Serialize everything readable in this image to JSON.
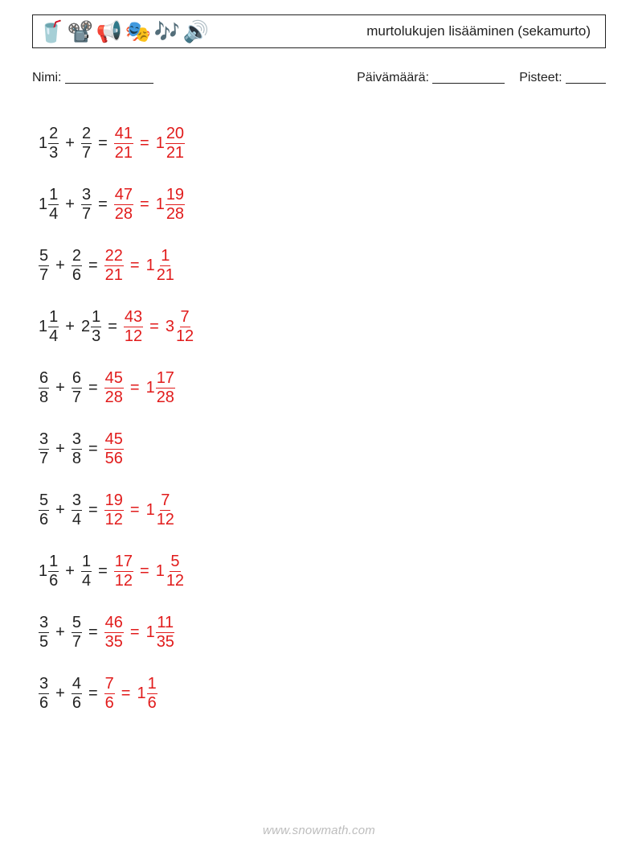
{
  "header": {
    "title": "murtolukujen lisääminen (sekamurto)",
    "icons": [
      "🥤",
      "📽️",
      "📢",
      "🎭",
      "🎶",
      "🔊"
    ]
  },
  "info": {
    "name_label": "Nimi:",
    "date_label": "Päivämäärä:",
    "score_label": "Pisteet:",
    "blank_name_w": 110,
    "blank_date_w": 90,
    "blank_score_w": 50
  },
  "colors": {
    "text": "#222222",
    "answer": "#e11b1b",
    "footer": "#bdbdbd",
    "background": "#ffffff"
  },
  "footer": "www.snowmath.com",
  "problems": [
    {
      "a": {
        "whole": "1",
        "num": "2",
        "den": "3"
      },
      "b": {
        "num": "2",
        "den": "7"
      },
      "im": {
        "num": "41",
        "den": "21"
      },
      "ans": {
        "whole": "1",
        "num": "20",
        "den": "21"
      }
    },
    {
      "a": {
        "whole": "1",
        "num": "1",
        "den": "4"
      },
      "b": {
        "num": "3",
        "den": "7"
      },
      "im": {
        "num": "47",
        "den": "28"
      },
      "ans": {
        "whole": "1",
        "num": "19",
        "den": "28"
      }
    },
    {
      "a": {
        "num": "5",
        "den": "7"
      },
      "b": {
        "num": "2",
        "den": "6"
      },
      "im": {
        "num": "22",
        "den": "21"
      },
      "ans": {
        "whole": "1",
        "num": "1",
        "den": "21"
      }
    },
    {
      "a": {
        "whole": "1",
        "num": "1",
        "den": "4"
      },
      "b": {
        "whole": "2",
        "num": "1",
        "den": "3"
      },
      "im": {
        "num": "43",
        "den": "12"
      },
      "ans": {
        "whole": "3",
        "num": "7",
        "den": "12"
      }
    },
    {
      "a": {
        "num": "6",
        "den": "8"
      },
      "b": {
        "num": "6",
        "den": "7"
      },
      "im": {
        "num": "45",
        "den": "28"
      },
      "ans": {
        "whole": "1",
        "num": "17",
        "den": "28"
      }
    },
    {
      "a": {
        "num": "3",
        "den": "7"
      },
      "b": {
        "num": "3",
        "den": "8"
      },
      "im": {
        "num": "45",
        "den": "56"
      }
    },
    {
      "a": {
        "num": "5",
        "den": "6"
      },
      "b": {
        "num": "3",
        "den": "4"
      },
      "im": {
        "num": "19",
        "den": "12"
      },
      "ans": {
        "whole": "1",
        "num": "7",
        "den": "12"
      }
    },
    {
      "a": {
        "whole": "1",
        "num": "1",
        "den": "6"
      },
      "b": {
        "num": "1",
        "den": "4"
      },
      "im": {
        "num": "17",
        "den": "12"
      },
      "ans": {
        "whole": "1",
        "num": "5",
        "den": "12"
      }
    },
    {
      "a": {
        "num": "3",
        "den": "5"
      },
      "b": {
        "num": "5",
        "den": "7"
      },
      "im": {
        "num": "46",
        "den": "35"
      },
      "ans": {
        "whole": "1",
        "num": "11",
        "den": "35"
      }
    },
    {
      "a": {
        "num": "3",
        "den": "6"
      },
      "b": {
        "num": "4",
        "den": "6"
      },
      "im": {
        "num": "7",
        "den": "6"
      },
      "ans": {
        "whole": "1",
        "num": "1",
        "den": "6"
      }
    }
  ]
}
